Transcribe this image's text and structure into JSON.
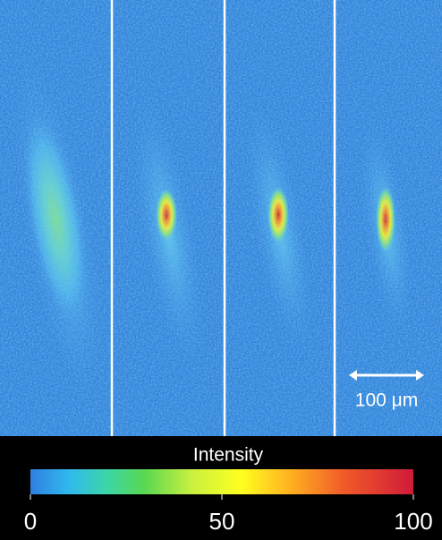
{
  "scale_bar": {
    "label": "100 μm"
  },
  "colorbar": {
    "title": "Intensity",
    "range": [
      0,
      100
    ],
    "ticks": [
      0,
      50,
      100
    ]
  }
}
